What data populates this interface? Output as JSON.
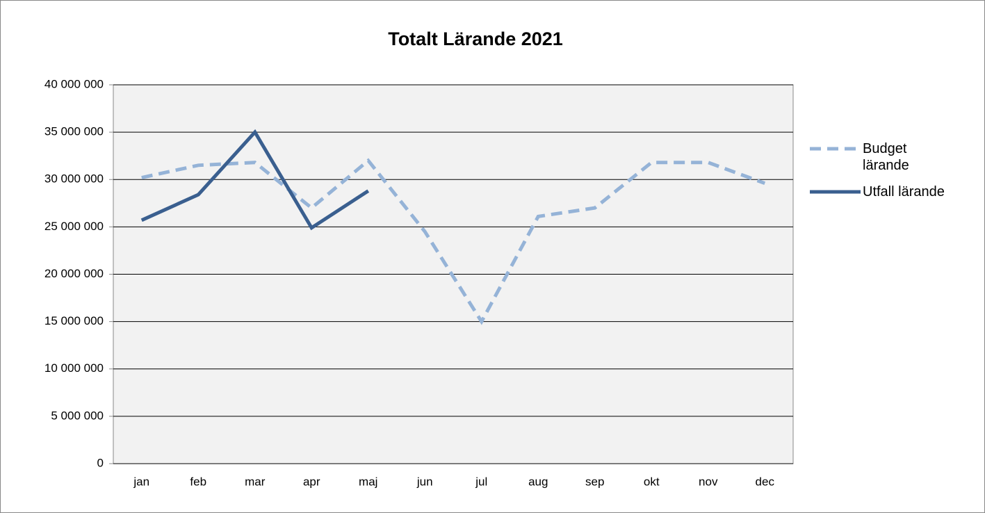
{
  "chart_data": {
    "type": "line",
    "title": "Totalt Lärande 2021",
    "categories": [
      "jan",
      "feb",
      "mar",
      "apr",
      "maj",
      "jun",
      "jul",
      "aug",
      "sep",
      "okt",
      "nov",
      "dec"
    ],
    "series": [
      {
        "name": "Budget lärande",
        "color": "#95b3d7",
        "dashed": true,
        "values": [
          30200000,
          31500000,
          31800000,
          27000000,
          32000000,
          24500000,
          15000000,
          26100000,
          27000000,
          31800000,
          31800000,
          29600000
        ]
      },
      {
        "name": "Utfall lärande",
        "color": "#3a5f8f",
        "dashed": false,
        "values": [
          25700000,
          28400000,
          35000000,
          24900000,
          28800000,
          null,
          null,
          null,
          null,
          null,
          null,
          null
        ]
      }
    ],
    "ylim": [
      0,
      40000000
    ],
    "yticks": [
      0,
      {
        "value": 5000000,
        "label": "5 000 000"
      },
      {
        "value": 10000000,
        "label": "10 000 000"
      },
      {
        "value": 15000000,
        "label": "15 000 000"
      },
      {
        "value": 20000000,
        "label": "20 000 000"
      },
      {
        "value": 25000000,
        "label": "25 000 000"
      },
      {
        "value": 30000000,
        "label": "30 000 000"
      },
      {
        "value": 35000000,
        "label": "35 000 000"
      },
      {
        "value": 40000000,
        "label": "40 000 000"
      }
    ],
    "grid": true,
    "legend": "right"
  }
}
